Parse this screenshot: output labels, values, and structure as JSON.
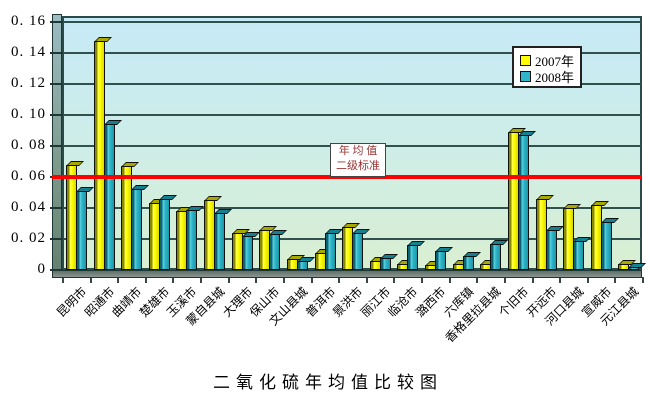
{
  "title": "二氧化硫年均值比较图",
  "legend": {
    "items": [
      {
        "label": "2007年",
        "color": "#ffff00"
      },
      {
        "label": "2008年",
        "color": "#2fb6ca"
      }
    ]
  },
  "annotation": {
    "line1": "年 均 值",
    "line2": "二级标准"
  },
  "colors": {
    "bar_2007": "#ffff00",
    "bar_2008": "#2fb6ca",
    "reference_line": "#fe0000",
    "plot_bg_top": "#c6eaf6",
    "plot_bg_bottom": "#d9efd2",
    "gridline": "#31514e",
    "annotation_text": "#993333"
  },
  "chart_data": {
    "type": "bar",
    "title": "二氧化硫年均值比较图",
    "categories": [
      "昆明市",
      "昭通市",
      "曲靖市",
      "楚雄市",
      "玉溪市",
      "蒙自县城",
      "大理市",
      "保山市",
      "文山县城",
      "普洱市",
      "景洪市",
      "丽江市",
      "临沧市",
      "潞西市",
      "六库镇",
      "香格里拉县城",
      "个旧市",
      "开远市",
      "河口县城",
      "宣威市",
      "元江县城"
    ],
    "series": [
      {
        "name": "2007年",
        "color": "#ffff00",
        "values": [
          0.068,
          0.148,
          0.067,
          0.043,
          0.038,
          0.045,
          0.024,
          0.026,
          0.007,
          0.011,
          0.028,
          0.006,
          0.004,
          0.003,
          0.004,
          0.004,
          0.089,
          0.046,
          0.04,
          0.042,
          0.004
        ]
      },
      {
        "name": "2008年",
        "color": "#2fb6ca",
        "values": [
          0.051,
          0.094,
          0.052,
          0.046,
          0.039,
          0.037,
          0.022,
          0.023,
          0.006,
          0.024,
          0.024,
          0.008,
          0.016,
          0.012,
          0.009,
          0.017,
          0.087,
          0.026,
          0.019,
          0.031,
          0.002
        ]
      }
    ],
    "xlabel": "",
    "ylabel": "",
    "ylim": [
      0,
      0.16
    ],
    "ytick_step": 0.02,
    "yticklabels": [
      "0",
      "0. 02",
      "0. 04",
      "0. 06",
      "0. 08",
      "0. 10",
      "0. 12",
      "0. 14",
      "0. 16"
    ],
    "reference_line": {
      "value": 0.06,
      "label": "年均值二级标准",
      "color": "#fe0000"
    },
    "grid": true,
    "legend_position": "top-right"
  }
}
